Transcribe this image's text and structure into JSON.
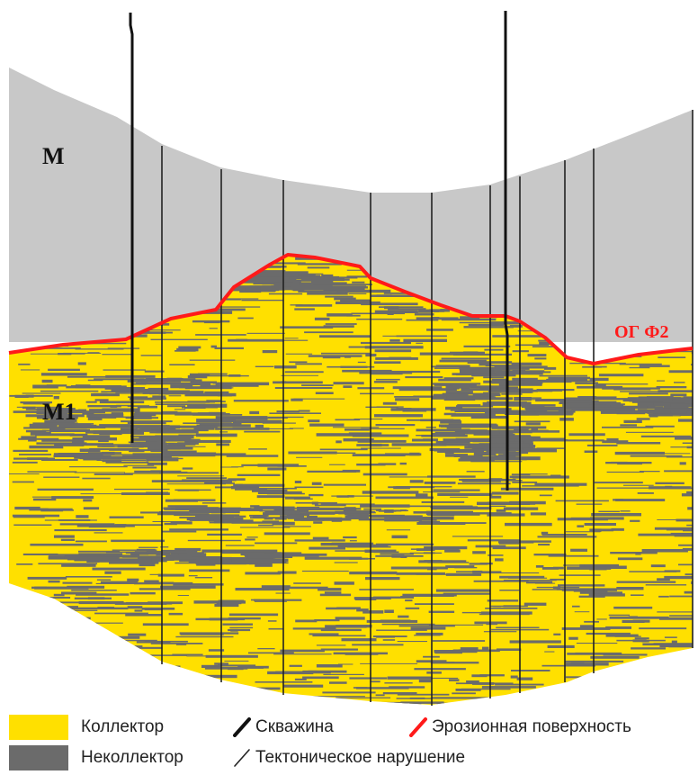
{
  "section": {
    "unit_upper": "M",
    "unit_lower": "M1",
    "horizon_label": "ОГ Ф2"
  },
  "legend": {
    "collector": "Коллектор",
    "noncollector": "Неколлектор",
    "well": "Скважина",
    "erosion_surface": "Эрозионная поверхность",
    "fault": "Тектоническое нарушение"
  },
  "colors": {
    "collector": "#ffe000",
    "noncollector": "#6b6b6b",
    "overburden": "#c8c8c8",
    "erosion_surface": "#ff1a1a",
    "well": "#111111",
    "fault": "#222222"
  }
}
